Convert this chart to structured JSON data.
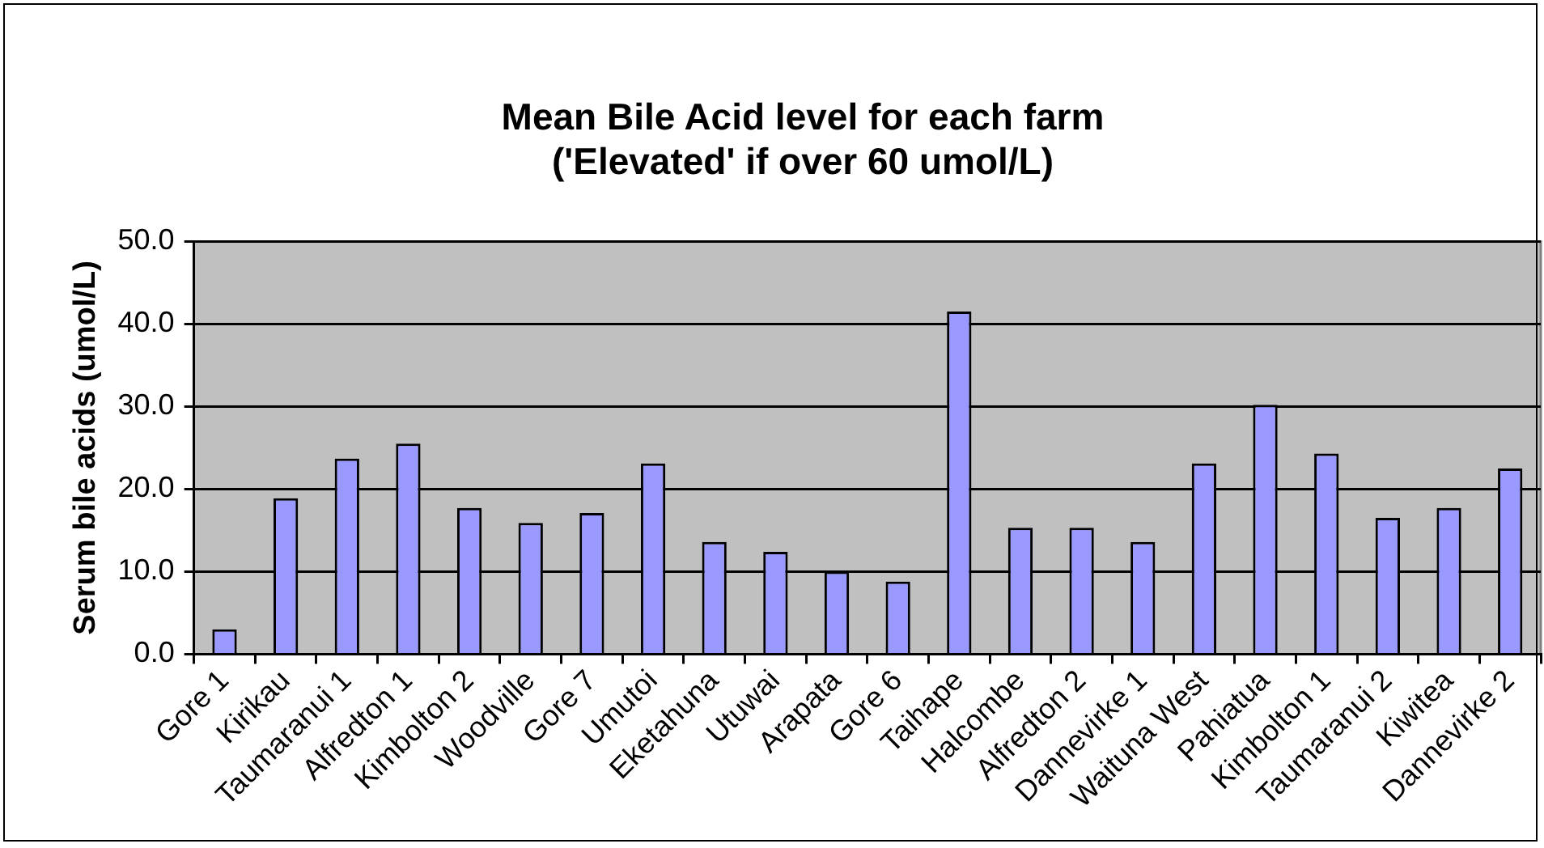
{
  "chart_data": {
    "type": "bar",
    "title": "Mean Bile Acid level for each farm\n('Elevated' if over 60 umol/L)",
    "ylabel": "Serum bile acids (umol/L)",
    "categories": [
      "Gore 1",
      "Kirikau",
      "Taumaranui 1",
      "Alfredton 1",
      "Kimbolton 2",
      "Woodville",
      "Gore 7",
      "Umutoi",
      "Eketahuna",
      "Utuwai",
      "Arapata",
      "Gore 6",
      "Taihape",
      "Halcombe",
      "Alfredton 2",
      "Dannevirke 1",
      "Waituna West",
      "Pahiatua",
      "Kimbolton 1",
      "Taumaranui 2",
      "Kiwitea",
      "Dannevirke 2"
    ],
    "values": [
      3.0,
      18.9,
      23.7,
      25.5,
      17.7,
      15.9,
      17.1,
      23.1,
      13.6,
      12.4,
      10.0,
      8.8,
      41.5,
      15.3,
      15.3,
      13.6,
      23.1,
      30.2,
      24.3,
      16.5,
      17.7,
      22.5
    ],
    "color": "#9999ff",
    "ylim": [
      0,
      50
    ],
    "yticks": [
      {
        "value": 0,
        "label": "0.0"
      },
      {
        "value": 10,
        "label": "10.0"
      },
      {
        "value": 20,
        "label": "20.0"
      },
      {
        "value": 30,
        "label": "30.0"
      },
      {
        "value": 40,
        "label": "40.0"
      },
      {
        "value": 50,
        "label": "50.0"
      }
    ],
    "grid": "y",
    "legend": false
  }
}
